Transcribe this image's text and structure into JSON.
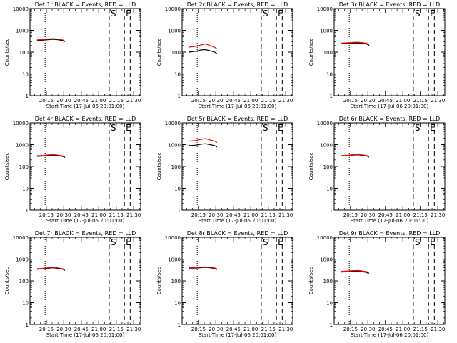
{
  "chart_data": [
    {
      "type": "line",
      "title": "Det 1r BLACK = Events, RED = LLD",
      "xlabel": "Start Time (17-Jul-06 20:01:00)",
      "ylabel": "Counts/sec",
      "yscale": "log",
      "ylim": [
        1,
        10000
      ],
      "xlim_minutes_after_start": [
        0,
        95
      ],
      "xtick_labels": [
        "20:15",
        "20:30",
        "20:45",
        "21:00",
        "21:15",
        "21:30"
      ],
      "ytick_labels": [
        "1",
        "10",
        "100",
        "1000",
        "10000"
      ],
      "markers": [
        {
          "label": "S",
          "style": "dashed"
        },
        {
          "label": "E",
          "style": "dashed"
        }
      ],
      "series": [
        {
          "color": "#000000",
          "x": [
            "20:07",
            "20:13",
            "20:17",
            "20:21",
            "20:25",
            "20:29",
            "20:31"
          ],
          "values": [
            340,
            355,
            375,
            390,
            370,
            340,
            300
          ]
        },
        {
          "color": "#ff0000",
          "x": [
            "20:07",
            "20:13",
            "20:17",
            "20:21",
            "20:25",
            "20:29",
            "20:31"
          ],
          "values": [
            365,
            380,
            400,
            415,
            395,
            365,
            320
          ]
        }
      ]
    },
    {
      "type": "line",
      "title": "Det 2r BLACK = Events, RED = LLD",
      "xlabel": "Start Time (17-Jul-06 20:01:00)",
      "ylabel": "Counts/sec",
      "yscale": "log",
      "ylim": [
        1,
        10000
      ],
      "xlim_minutes_after_start": [
        0,
        95
      ],
      "xtick_labels": [
        "20:15",
        "20:30",
        "20:45",
        "21:00",
        "21:15",
        "21:30"
      ],
      "ytick_labels": [
        "1",
        "10",
        "100",
        "1000",
        "10000"
      ],
      "markers": [
        {
          "label": "S",
          "style": "dashed"
        },
        {
          "label": "E",
          "style": "dashed"
        }
      ],
      "series": [
        {
          "color": "#000000",
          "x": [
            "20:07",
            "20:13",
            "20:17",
            "20:21",
            "20:25",
            "20:29",
            "20:31"
          ],
          "values": [
            100,
            110,
            125,
            130,
            115,
            100,
            85
          ]
        },
        {
          "color": "#ff0000",
          "x": [
            "20:07",
            "20:13",
            "20:17",
            "20:21",
            "20:25",
            "20:29",
            "20:31"
          ],
          "values": [
            170,
            185,
            215,
            235,
            200,
            165,
            140
          ]
        }
      ]
    },
    {
      "type": "line",
      "title": "Det 3r BLACK = Events, RED = LLD",
      "xlabel": "Start Time (17-Jul-06 20:01:00)",
      "ylabel": "Counts/sec",
      "yscale": "log",
      "ylim": [
        1,
        10000
      ],
      "xlim_minutes_after_start": [
        0,
        95
      ],
      "xtick_labels": [
        "20:15",
        "20:30",
        "20:45",
        "21:00",
        "21:15",
        "21:30"
      ],
      "ytick_labels": [
        "1",
        "10",
        "100",
        "1000",
        "10000"
      ],
      "markers": [
        {
          "label": "S",
          "style": "dashed"
        },
        {
          "label": "E",
          "style": "dashed"
        }
      ],
      "series": [
        {
          "color": "#000000",
          "x": [
            "20:07",
            "20:13",
            "20:17",
            "20:21",
            "20:25",
            "20:29",
            "20:31"
          ],
          "values": [
            240,
            250,
            260,
            265,
            255,
            235,
            200
          ]
        },
        {
          "color": "#ff0000",
          "x": [
            "20:07",
            "20:13",
            "20:17",
            "20:21",
            "20:25",
            "20:29",
            "20:31"
          ],
          "values": [
            260,
            270,
            280,
            285,
            275,
            255,
            220
          ]
        }
      ]
    },
    {
      "type": "line",
      "title": "Det 4r BLACK = Events, RED = LLD",
      "xlabel": "Start Time (17-Jul-06 20:01:00)",
      "ylabel": "Counts/sec",
      "yscale": "log",
      "ylim": [
        1,
        10000
      ],
      "xlim_minutes_after_start": [
        0,
        95
      ],
      "xtick_labels": [
        "20:15",
        "20:30",
        "20:45",
        "21:00",
        "21:15",
        "21:30"
      ],
      "ytick_labels": [
        "1",
        "10",
        "100",
        "1000",
        "10000"
      ],
      "markers": [
        {
          "label": "S",
          "style": "dashed"
        },
        {
          "label": "E",
          "style": "dashed"
        }
      ],
      "series": [
        {
          "color": "#000000",
          "x": [
            "20:07",
            "20:13",
            "20:17",
            "20:21",
            "20:25",
            "20:29",
            "20:31"
          ],
          "values": [
            290,
            300,
            320,
            330,
            310,
            290,
            255
          ]
        },
        {
          "color": "#ff0000",
          "x": [
            "20:07",
            "20:13",
            "20:17",
            "20:21",
            "20:25",
            "20:29",
            "20:31"
          ],
          "values": [
            310,
            320,
            340,
            350,
            330,
            305,
            270
          ]
        }
      ]
    },
    {
      "type": "line",
      "title": "Det 5r BLACK = Events, RED = LLD",
      "xlabel": "Start Time (17-Jul-06 20:01:00)",
      "ylabel": "Counts/sec",
      "yscale": "log",
      "ylim": [
        1,
        10000
      ],
      "xlim_minutes_after_start": [
        0,
        95
      ],
      "xtick_labels": [
        "20:15",
        "20:30",
        "20:45",
        "21:00",
        "21:15",
        "21:30"
      ],
      "ytick_labels": [
        "1",
        "10",
        "100",
        "1000",
        "10000"
      ],
      "markers": [
        {
          "label": "S",
          "style": "dashed"
        },
        {
          "label": "E",
          "style": "dashed"
        }
      ],
      "series": [
        {
          "color": "#000000",
          "x": [
            "20:07",
            "20:13",
            "20:17",
            "20:21",
            "20:25",
            "20:29",
            "20:31"
          ],
          "values": [
            900,
            950,
            1050,
            1100,
            1000,
            900,
            780
          ]
        },
        {
          "color": "#ff0000",
          "x": [
            "20:07",
            "20:13",
            "20:17",
            "20:21",
            "20:25",
            "20:29",
            "20:31"
          ],
          "values": [
            1450,
            1550,
            1750,
            1900,
            1650,
            1450,
            1250
          ]
        }
      ]
    },
    {
      "type": "line",
      "title": "Det 6r BLACK = Events, RED = LLD",
      "xlabel": "Start Time (17-Jul-06 20:01:00)",
      "ylabel": "Counts/sec",
      "yscale": "log",
      "ylim": [
        1,
        10000
      ],
      "xlim_minutes_after_start": [
        0,
        95
      ],
      "xtick_labels": [
        "20:15",
        "20:30",
        "20:45",
        "21:00",
        "21:15",
        "21:30"
      ],
      "ytick_labels": [
        "1",
        "10",
        "100",
        "1000",
        "10000"
      ],
      "markers": [
        {
          "label": "S",
          "style": "dashed"
        },
        {
          "label": "E",
          "style": "dashed"
        }
      ],
      "series": [
        {
          "color": "#000000",
          "x": [
            "20:07",
            "20:13",
            "20:17",
            "20:21",
            "20:25",
            "20:29",
            "20:31"
          ],
          "values": [
            300,
            310,
            330,
            345,
            325,
            300,
            265
          ]
        },
        {
          "color": "#ff0000",
          "x": [
            "20:07",
            "20:13",
            "20:17",
            "20:21",
            "20:25",
            "20:29",
            "20:31"
          ],
          "values": [
            315,
            325,
            345,
            360,
            340,
            315,
            280
          ]
        }
      ]
    },
    {
      "type": "line",
      "title": "Det 7r BLACK = Events, RED = LLD",
      "xlabel": "Start Time (17-Jul-06 20:01:00)",
      "ylabel": "Counts/sec",
      "yscale": "log",
      "ylim": [
        1,
        10000
      ],
      "xlim_minutes_after_start": [
        0,
        95
      ],
      "xtick_labels": [
        "20:15",
        "20:30",
        "20:45",
        "21:00",
        "21:15",
        "21:30"
      ],
      "ytick_labels": [
        "1",
        "10",
        "100",
        "1000",
        "10000"
      ],
      "markers": [
        {
          "label": "S",
          "style": "dashed"
        },
        {
          "label": "E",
          "style": "dashed"
        }
      ],
      "series": [
        {
          "color": "#000000",
          "x": [
            "20:07",
            "20:13",
            "20:17",
            "20:21",
            "20:25",
            "20:29",
            "20:31"
          ],
          "values": [
            340,
            360,
            380,
            400,
            375,
            345,
            300
          ]
        },
        {
          "color": "#ff0000",
          "x": [
            "20:07",
            "20:13",
            "20:17",
            "20:21",
            "20:25",
            "20:29",
            "20:31"
          ],
          "values": [
            360,
            380,
            400,
            420,
            395,
            365,
            320
          ]
        }
      ]
    },
    {
      "type": "line",
      "title": "Det 8r BLACK = Events, RED = LLD",
      "xlabel": "Start Time (17-Jul-06 20:01:00)",
      "ylabel": "Counts/sec",
      "yscale": "log",
      "ylim": [
        1,
        10000
      ],
      "xlim_minutes_after_start": [
        0,
        95
      ],
      "xtick_labels": [
        "20:15",
        "20:30",
        "20:45",
        "21:00",
        "21:15",
        "21:30"
      ],
      "ytick_labels": [
        "1",
        "10",
        "100",
        "1000",
        "10000"
      ],
      "markers": [
        {
          "label": "S",
          "style": "dashed"
        },
        {
          "label": "E",
          "style": "dashed"
        }
      ],
      "series": [
        {
          "color": "#000000",
          "x": [
            "20:07",
            "20:13",
            "20:17",
            "20:21",
            "20:25",
            "20:29",
            "20:31"
          ],
          "values": [
            380,
            390,
            400,
            420,
            400,
            370,
            330
          ]
        },
        {
          "color": "#ff0000",
          "x": [
            "20:07",
            "20:13",
            "20:17",
            "20:21",
            "20:25",
            "20:29",
            "20:31"
          ],
          "values": [
            400,
            410,
            420,
            440,
            420,
            390,
            350
          ]
        }
      ]
    },
    {
      "type": "line",
      "title": "Det 9r BLACK = Events, RED = LLD",
      "xlabel": "Start Time (17-Jul-06 20:01:00)",
      "ylabel": "Counts/sec",
      "yscale": "log",
      "ylim": [
        1,
        10000
      ],
      "xlim_minutes_after_start": [
        0,
        95
      ],
      "xtick_labels": [
        "20:15",
        "20:30",
        "20:45",
        "21:00",
        "21:15",
        "21:30"
      ],
      "ytick_labels": [
        "1",
        "10",
        "100",
        "1000",
        "10000"
      ],
      "markers": [
        {
          "label": "S",
          "style": "dashed"
        },
        {
          "label": "E",
          "style": "dashed"
        }
      ],
      "series": [
        {
          "color": "#000000",
          "x": [
            "20:07",
            "20:13",
            "20:17",
            "20:21",
            "20:25",
            "20:29",
            "20:31"
          ],
          "values": [
            255,
            265,
            275,
            280,
            265,
            245,
            205
          ]
        },
        {
          "color": "#ff0000",
          "x": [
            "20:07",
            "20:13",
            "20:17",
            "20:21",
            "20:25",
            "20:29",
            "20:31"
          ],
          "values": [
            275,
            285,
            295,
            300,
            285,
            265,
            225
          ]
        }
      ]
    }
  ]
}
